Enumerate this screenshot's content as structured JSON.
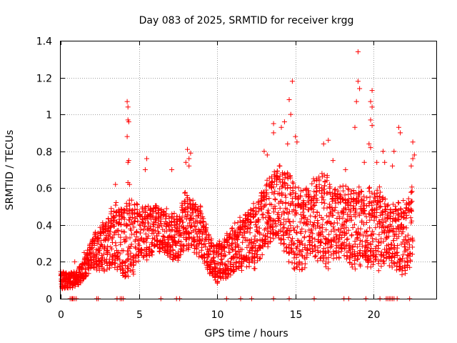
{
  "chart_data": {
    "type": "scatter",
    "title": "Day 083 of 2025, SRMTID for receiver krgg",
    "xlabel": "GPS time / hours",
    "ylabel": "SRMTID / TECUs",
    "xlim": [
      0,
      24
    ],
    "ylim": [
      0,
      1.4
    ],
    "xticks": [
      0,
      5,
      10,
      15,
      20
    ],
    "xtick_labels": [
      "0",
      "5",
      "10",
      "15",
      "20"
    ],
    "yticks": [
      0,
      0.2,
      0.4,
      0.6,
      0.8,
      1,
      1.2,
      1.4
    ],
    "ytick_labels": [
      "0",
      "0.2",
      "0.4",
      "0.6",
      "0.8",
      "1",
      "1.2",
      "1.4"
    ],
    "grid": true,
    "marker": "+",
    "color": "#ff0000",
    "series": [
      {
        "name": "SRMTID",
        "envelope": [
          [
            0.0,
            0.05,
            0.15
          ],
          [
            0.5,
            0.05,
            0.14
          ],
          [
            1.0,
            0.06,
            0.15
          ],
          [
            1.5,
            0.1,
            0.22
          ],
          [
            2.0,
            0.15,
            0.34
          ],
          [
            2.5,
            0.14,
            0.4
          ],
          [
            3.0,
            0.15,
            0.45
          ],
          [
            3.5,
            0.15,
            0.55
          ],
          [
            4.0,
            0.12,
            0.5
          ],
          [
            4.5,
            0.1,
            0.55
          ],
          [
            5.0,
            0.2,
            0.52
          ],
          [
            5.5,
            0.2,
            0.5
          ],
          [
            6.0,
            0.25,
            0.52
          ],
          [
            6.5,
            0.25,
            0.5
          ],
          [
            7.0,
            0.2,
            0.5
          ],
          [
            7.5,
            0.2,
            0.45
          ],
          [
            8.0,
            0.25,
            0.6
          ],
          [
            8.5,
            0.25,
            0.55
          ],
          [
            9.0,
            0.2,
            0.5
          ],
          [
            9.5,
            0.12,
            0.35
          ],
          [
            10.0,
            0.08,
            0.3
          ],
          [
            10.5,
            0.1,
            0.35
          ],
          [
            11.0,
            0.12,
            0.4
          ],
          [
            11.5,
            0.15,
            0.45
          ],
          [
            12.0,
            0.15,
            0.5
          ],
          [
            12.5,
            0.15,
            0.55
          ],
          [
            13.0,
            0.25,
            0.62
          ],
          [
            13.5,
            0.3,
            0.7
          ],
          [
            14.0,
            0.3,
            0.75
          ],
          [
            14.5,
            0.2,
            0.7
          ],
          [
            15.0,
            0.15,
            0.62
          ],
          [
            15.5,
            0.15,
            0.6
          ],
          [
            16.0,
            0.2,
            0.65
          ],
          [
            16.5,
            0.2,
            0.7
          ],
          [
            17.0,
            0.15,
            0.7
          ],
          [
            17.5,
            0.2,
            0.6
          ],
          [
            18.0,
            0.2,
            0.62
          ],
          [
            18.5,
            0.15,
            0.6
          ],
          [
            19.0,
            0.15,
            0.62
          ],
          [
            19.5,
            0.15,
            0.6
          ],
          [
            20.0,
            0.15,
            0.62
          ],
          [
            20.5,
            0.15,
            0.62
          ],
          [
            21.0,
            0.15,
            0.5
          ],
          [
            21.5,
            0.15,
            0.55
          ],
          [
            22.0,
            0.1,
            0.55
          ],
          [
            22.5,
            0.2,
            0.65
          ]
        ],
        "outliers": [
          [
            4.25,
            1.07
          ],
          [
            4.3,
            1.04
          ],
          [
            4.3,
            0.97
          ],
          [
            4.35,
            0.96
          ],
          [
            4.25,
            0.88
          ],
          [
            4.35,
            0.75
          ],
          [
            4.3,
            0.74
          ],
          [
            4.3,
            0.63
          ],
          [
            4.4,
            0.62
          ],
          [
            5.5,
            0.76
          ],
          [
            5.4,
            0.7
          ],
          [
            7.1,
            0.7
          ],
          [
            3.5,
            0.62
          ],
          [
            8.1,
            0.81
          ],
          [
            8.3,
            0.79
          ],
          [
            8.2,
            0.76
          ],
          [
            8.0,
            0.74
          ],
          [
            8.2,
            0.72
          ],
          [
            13.6,
            0.95
          ],
          [
            13.6,
            0.9
          ],
          [
            14.1,
            0.93
          ],
          [
            14.3,
            0.96
          ],
          [
            14.8,
            1.18
          ],
          [
            14.6,
            1.08
          ],
          [
            14.7,
            1.0
          ],
          [
            15.0,
            0.88
          ],
          [
            15.1,
            0.85
          ],
          [
            14.5,
            0.84
          ],
          [
            16.8,
            0.84
          ],
          [
            17.1,
            0.86
          ],
          [
            19.0,
            1.34
          ],
          [
            19.0,
            1.18
          ],
          [
            19.1,
            1.14
          ],
          [
            18.9,
            1.07
          ],
          [
            19.9,
            1.13
          ],
          [
            19.8,
            1.07
          ],
          [
            19.9,
            1.04
          ],
          [
            19.8,
            0.97
          ],
          [
            19.9,
            0.94
          ],
          [
            18.8,
            0.93
          ],
          [
            19.7,
            0.84
          ],
          [
            19.8,
            0.82
          ],
          [
            20.6,
            0.8
          ],
          [
            20.7,
            0.74
          ],
          [
            21.6,
            0.93
          ],
          [
            21.7,
            0.9
          ],
          [
            21.3,
            0.8
          ],
          [
            22.5,
            0.85
          ],
          [
            22.6,
            0.78
          ],
          [
            22.5,
            0.76
          ],
          [
            22.4,
            0.72
          ],
          [
            13.0,
            0.8
          ],
          [
            13.2,
            0.78
          ],
          [
            17.4,
            0.75
          ],
          [
            18.2,
            0.7
          ],
          [
            19.4,
            0.74
          ],
          [
            20.2,
            0.74
          ],
          [
            21.2,
            0.72
          ],
          [
            0.9,
            0.2
          ],
          [
            1.5,
            0.25
          ]
        ],
        "baseline_marks": [
          0.6,
          0.7,
          0.75,
          0.8,
          0.9,
          1.0,
          2.3,
          2.4,
          3.6,
          3.8,
          3.9,
          4.0,
          6.4,
          7.4,
          7.6,
          10.6,
          11.5,
          12.2,
          13.6,
          14.6,
          16.2,
          18.1,
          18.4,
          19.5,
          20.4,
          20.8,
          20.9,
          21.0,
          21.1,
          21.2,
          21.3,
          21.5,
          22.3
        ]
      }
    ]
  }
}
